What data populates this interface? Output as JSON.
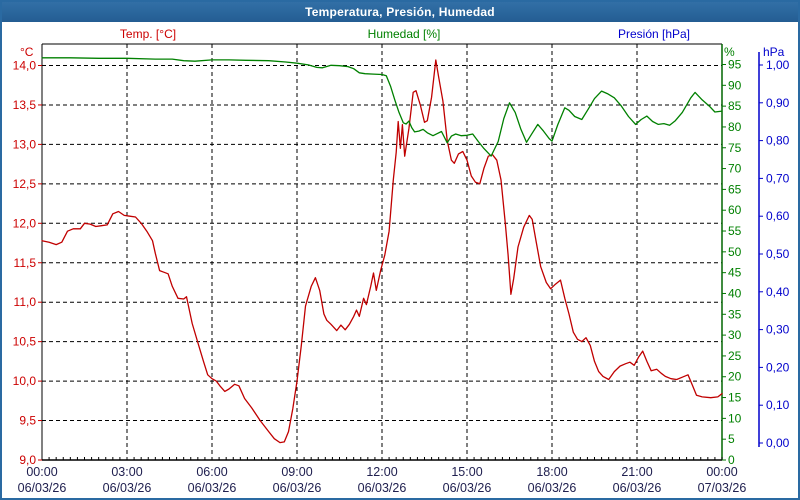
{
  "window": {
    "title": "Temperatura, Presión, Humedad"
  },
  "colors": {
    "titlebar": "#29659b",
    "frame": "#000000",
    "temp": "#c00000",
    "humidity": "#008000",
    "pressure": "#0000cc",
    "x_label_text": "#202050",
    "border": "#2a6aa2"
  },
  "legend": [
    {
      "label": "Temp. [°C]",
      "color": "#cc0000"
    },
    {
      "label": "Humedad [%]",
      "color": "#008000"
    },
    {
      "label": "Presión [hPa]",
      "color": "#0000cc"
    }
  ],
  "axes": {
    "left_temperature": {
      "unit": "°C",
      "color": "#cc0000",
      "tick_labels": [
        "14,0",
        "13,5",
        "13,0",
        "12,5",
        "12,0",
        "11,5",
        "11,0",
        "10,5",
        "10,0",
        "9,5",
        "9,0"
      ],
      "tick_values": [
        14.0,
        13.5,
        13.0,
        12.5,
        12.0,
        11.5,
        11.0,
        10.5,
        10.0,
        9.5,
        9.0
      ]
    },
    "right_humidity": {
      "unit": "%",
      "color": "#008000",
      "tick_labels": [
        "95",
        "90",
        "85",
        "80",
        "75",
        "70",
        "65",
        "60",
        "55",
        "50",
        "45",
        "40",
        "35",
        "30",
        "25",
        "20",
        "15",
        "10",
        "5",
        "0"
      ],
      "tick_values": [
        95,
        90,
        85,
        80,
        75,
        70,
        65,
        60,
        55,
        50,
        45,
        40,
        35,
        30,
        25,
        20,
        15,
        10,
        5,
        0
      ]
    },
    "right_pressure": {
      "unit": "hPa",
      "color": "#0000cc",
      "tick_labels": [
        "1,00",
        "0,90",
        "0,80",
        "0,70",
        "0,60",
        "0,50",
        "0,40",
        "0,30",
        "0,20",
        "0,10",
        "0,00"
      ],
      "tick_values": [
        1.0,
        0.9,
        0.8,
        0.7,
        0.6,
        0.5,
        0.4,
        0.3,
        0.2,
        0.1,
        0.0
      ]
    },
    "x_time": {
      "ticks": [
        {
          "hour": 0,
          "time": "00:00",
          "date": "06/03/26"
        },
        {
          "hour": 3,
          "time": "03:00",
          "date": "06/03/26"
        },
        {
          "hour": 6,
          "time": "06:00",
          "date": "06/03/26"
        },
        {
          "hour": 9,
          "time": "09:00",
          "date": "06/03/26"
        },
        {
          "hour": 12,
          "time": "12:00",
          "date": "06/03/26"
        },
        {
          "hour": 15,
          "time": "15:00",
          "date": "06/03/26"
        },
        {
          "hour": 18,
          "time": "18:00",
          "date": "06/03/26"
        },
        {
          "hour": 21,
          "time": "21:00",
          "date": "06/03/26"
        },
        {
          "hour": 24,
          "time": "00:00",
          "date": "07/03/26"
        }
      ]
    }
  },
  "chart_data": {
    "type": "line",
    "title": "Temperatura, Presión, Humedad",
    "x_unit": "hours since 06/03/26 00:00",
    "x_range": [
      0,
      24
    ],
    "grid": {
      "x_step_hours": 3,
      "temp_step": 0.5,
      "style": "dashed"
    },
    "axis_ranges": {
      "temperature_c": [
        9.0,
        14.27
      ],
      "humidity_pct": [
        0,
        100
      ],
      "pressure_hpa": [
        0.0,
        1.0
      ]
    },
    "series": [
      {
        "name": "Temp. [°C]",
        "axis": "temperature",
        "color": "#c00000",
        "points": [
          [
            0.0,
            11.78
          ],
          [
            0.25,
            11.76
          ],
          [
            0.5,
            11.73
          ],
          [
            0.7,
            11.76
          ],
          [
            0.9,
            11.9
          ],
          [
            1.1,
            11.93
          ],
          [
            1.35,
            11.93
          ],
          [
            1.5,
            12.0
          ],
          [
            1.7,
            11.99
          ],
          [
            1.9,
            11.96
          ],
          [
            2.1,
            11.97
          ],
          [
            2.3,
            11.98
          ],
          [
            2.5,
            12.12
          ],
          [
            2.7,
            12.15
          ],
          [
            2.9,
            12.1
          ],
          [
            3.1,
            12.09
          ],
          [
            3.3,
            12.08
          ],
          [
            3.5,
            12.0
          ],
          [
            3.7,
            11.9
          ],
          [
            3.9,
            11.78
          ],
          [
            4.0,
            11.62
          ],
          [
            4.15,
            11.4
          ],
          [
            4.3,
            11.38
          ],
          [
            4.45,
            11.36
          ],
          [
            4.6,
            11.2
          ],
          [
            4.8,
            11.05
          ],
          [
            5.0,
            11.04
          ],
          [
            5.1,
            11.07
          ],
          [
            5.3,
            10.73
          ],
          [
            5.5,
            10.49
          ],
          [
            5.7,
            10.25
          ],
          [
            5.85,
            10.08
          ],
          [
            6.0,
            10.03
          ],
          [
            6.15,
            10.0
          ],
          [
            6.3,
            9.93
          ],
          [
            6.45,
            9.87
          ],
          [
            6.6,
            9.9
          ],
          [
            6.8,
            9.96
          ],
          [
            6.95,
            9.94
          ],
          [
            7.15,
            9.78
          ],
          [
            7.4,
            9.66
          ],
          [
            7.7,
            9.5
          ],
          [
            8.0,
            9.36
          ],
          [
            8.2,
            9.27
          ],
          [
            8.4,
            9.22
          ],
          [
            8.55,
            9.23
          ],
          [
            8.7,
            9.36
          ],
          [
            8.85,
            9.65
          ],
          [
            9.0,
            10.0
          ],
          [
            9.15,
            10.45
          ],
          [
            9.3,
            10.95
          ],
          [
            9.5,
            11.2
          ],
          [
            9.65,
            11.31
          ],
          [
            9.8,
            11.15
          ],
          [
            9.95,
            10.85
          ],
          [
            10.05,
            10.77
          ],
          [
            10.2,
            10.72
          ],
          [
            10.4,
            10.64
          ],
          [
            10.55,
            10.71
          ],
          [
            10.7,
            10.65
          ],
          [
            10.85,
            10.72
          ],
          [
            11.0,
            10.82
          ],
          [
            11.1,
            10.9
          ],
          [
            11.2,
            10.82
          ],
          [
            11.35,
            11.05
          ],
          [
            11.45,
            10.97
          ],
          [
            11.6,
            11.2
          ],
          [
            11.7,
            11.37
          ],
          [
            11.8,
            11.15
          ],
          [
            11.95,
            11.4
          ],
          [
            12.1,
            11.6
          ],
          [
            12.25,
            11.9
          ],
          [
            12.4,
            12.55
          ],
          [
            12.5,
            12.9
          ],
          [
            12.57,
            13.29
          ],
          [
            12.65,
            12.95
          ],
          [
            12.72,
            13.25
          ],
          [
            12.8,
            12.85
          ],
          [
            12.95,
            13.2
          ],
          [
            13.1,
            13.66
          ],
          [
            13.2,
            13.68
          ],
          [
            13.35,
            13.5
          ],
          [
            13.5,
            13.28
          ],
          [
            13.6,
            13.3
          ],
          [
            13.75,
            13.6
          ],
          [
            13.9,
            14.07
          ],
          [
            14.0,
            13.85
          ],
          [
            14.15,
            13.55
          ],
          [
            14.3,
            13.05
          ],
          [
            14.45,
            12.8
          ],
          [
            14.55,
            12.76
          ],
          [
            14.7,
            12.88
          ],
          [
            14.85,
            12.91
          ],
          [
            15.0,
            12.8
          ],
          [
            15.15,
            12.6
          ],
          [
            15.3,
            12.52
          ],
          [
            15.45,
            12.5
          ],
          [
            15.6,
            12.7
          ],
          [
            15.75,
            12.85
          ],
          [
            15.9,
            12.87
          ],
          [
            16.05,
            12.8
          ],
          [
            16.2,
            12.55
          ],
          [
            16.35,
            12.0
          ],
          [
            16.45,
            11.6
          ],
          [
            16.55,
            11.1
          ],
          [
            16.65,
            11.3
          ],
          [
            16.8,
            11.7
          ],
          [
            17.0,
            11.95
          ],
          [
            17.2,
            12.1
          ],
          [
            17.3,
            12.05
          ],
          [
            17.45,
            11.75
          ],
          [
            17.6,
            11.45
          ],
          [
            17.8,
            11.25
          ],
          [
            17.95,
            11.17
          ],
          [
            18.1,
            11.22
          ],
          [
            18.3,
            11.28
          ],
          [
            18.45,
            11.05
          ],
          [
            18.6,
            10.85
          ],
          [
            18.75,
            10.62
          ],
          [
            18.9,
            10.53
          ],
          [
            19.05,
            10.5
          ],
          [
            19.2,
            10.55
          ],
          [
            19.35,
            10.45
          ],
          [
            19.5,
            10.25
          ],
          [
            19.65,
            10.12
          ],
          [
            19.8,
            10.06
          ],
          [
            20.0,
            10.02
          ],
          [
            20.2,
            10.12
          ],
          [
            20.4,
            10.19
          ],
          [
            20.6,
            10.22
          ],
          [
            20.75,
            10.24
          ],
          [
            20.9,
            10.2
          ],
          [
            21.05,
            10.3
          ],
          [
            21.2,
            10.38
          ],
          [
            21.35,
            10.25
          ],
          [
            21.5,
            10.13
          ],
          [
            21.7,
            10.15
          ],
          [
            21.85,
            10.1
          ],
          [
            22.0,
            10.06
          ],
          [
            22.2,
            10.03
          ],
          [
            22.4,
            10.02
          ],
          [
            22.6,
            10.05
          ],
          [
            22.8,
            10.08
          ],
          [
            22.95,
            9.95
          ],
          [
            23.1,
            9.82
          ],
          [
            23.3,
            9.8
          ],
          [
            23.6,
            9.79
          ],
          [
            23.85,
            9.8
          ],
          [
            24.0,
            9.84
          ]
        ]
      },
      {
        "name": "Humedad [%]",
        "axis": "humidity",
        "color": "#008000",
        "points": [
          [
            0.0,
            96.6
          ],
          [
            1.0,
            96.6
          ],
          [
            2.0,
            96.5
          ],
          [
            3.0,
            96.5
          ],
          [
            4.0,
            96.3
          ],
          [
            4.6,
            96.3
          ],
          [
            5.0,
            95.9
          ],
          [
            5.4,
            95.8
          ],
          [
            6.0,
            96.1
          ],
          [
            6.6,
            96.1
          ],
          [
            7.2,
            96.0
          ],
          [
            8.0,
            95.9
          ],
          [
            8.6,
            95.6
          ],
          [
            9.0,
            95.3
          ],
          [
            9.4,
            94.9
          ],
          [
            9.7,
            94.3
          ],
          [
            9.9,
            94.2
          ],
          [
            10.2,
            94.8
          ],
          [
            10.5,
            94.7
          ],
          [
            10.8,
            94.5
          ],
          [
            11.0,
            94.0
          ],
          [
            11.2,
            93.0
          ],
          [
            11.4,
            92.8
          ],
          [
            11.7,
            92.7
          ],
          [
            12.0,
            92.6
          ],
          [
            12.15,
            92.3
          ],
          [
            12.3,
            89.8
          ],
          [
            12.45,
            86.5
          ],
          [
            12.6,
            83.5
          ],
          [
            12.75,
            81.0
          ],
          [
            12.85,
            80.7
          ],
          [
            12.95,
            81.4
          ],
          [
            13.05,
            79.8
          ],
          [
            13.15,
            78.8
          ],
          [
            13.3,
            79.0
          ],
          [
            13.45,
            79.4
          ],
          [
            13.6,
            78.6
          ],
          [
            13.8,
            77.9
          ],
          [
            13.95,
            78.4
          ],
          [
            14.1,
            78.9
          ],
          [
            14.3,
            76.2
          ],
          [
            14.45,
            77.8
          ],
          [
            14.6,
            78.3
          ],
          [
            14.8,
            77.9
          ],
          [
            15.0,
            78.0
          ],
          [
            15.2,
            78.3
          ],
          [
            15.4,
            76.5
          ],
          [
            15.6,
            74.8
          ],
          [
            15.85,
            73.0
          ],
          [
            16.1,
            76.5
          ],
          [
            16.3,
            82.0
          ],
          [
            16.5,
            85.8
          ],
          [
            16.7,
            83.5
          ],
          [
            16.9,
            79.5
          ],
          [
            17.1,
            76.3
          ],
          [
            17.3,
            78.5
          ],
          [
            17.5,
            80.6
          ],
          [
            17.7,
            79.0
          ],
          [
            17.9,
            77.2
          ],
          [
            18.0,
            76.6
          ],
          [
            18.2,
            80.5
          ],
          [
            18.45,
            84.6
          ],
          [
            18.6,
            84.0
          ],
          [
            18.8,
            82.5
          ],
          [
            19.05,
            81.8
          ],
          [
            19.3,
            84.5
          ],
          [
            19.5,
            86.8
          ],
          [
            19.75,
            88.6
          ],
          [
            19.95,
            88.0
          ],
          [
            20.2,
            87.0
          ],
          [
            20.45,
            85.0
          ],
          [
            20.7,
            82.5
          ],
          [
            20.95,
            80.6
          ],
          [
            21.15,
            81.8
          ],
          [
            21.35,
            82.6
          ],
          [
            21.55,
            81.3
          ],
          [
            21.75,
            80.6
          ],
          [
            21.95,
            80.8
          ],
          [
            22.15,
            80.4
          ],
          [
            22.35,
            81.5
          ],
          [
            22.6,
            83.5
          ],
          [
            22.9,
            87.0
          ],
          [
            23.05,
            88.3
          ],
          [
            23.3,
            86.5
          ],
          [
            23.55,
            85.0
          ],
          [
            23.75,
            83.6
          ],
          [
            24.0,
            83.8
          ]
        ]
      },
      {
        "name": "Presión [hPa]",
        "axis": "pressure",
        "color": "#0000cc",
        "points": []
      }
    ]
  }
}
